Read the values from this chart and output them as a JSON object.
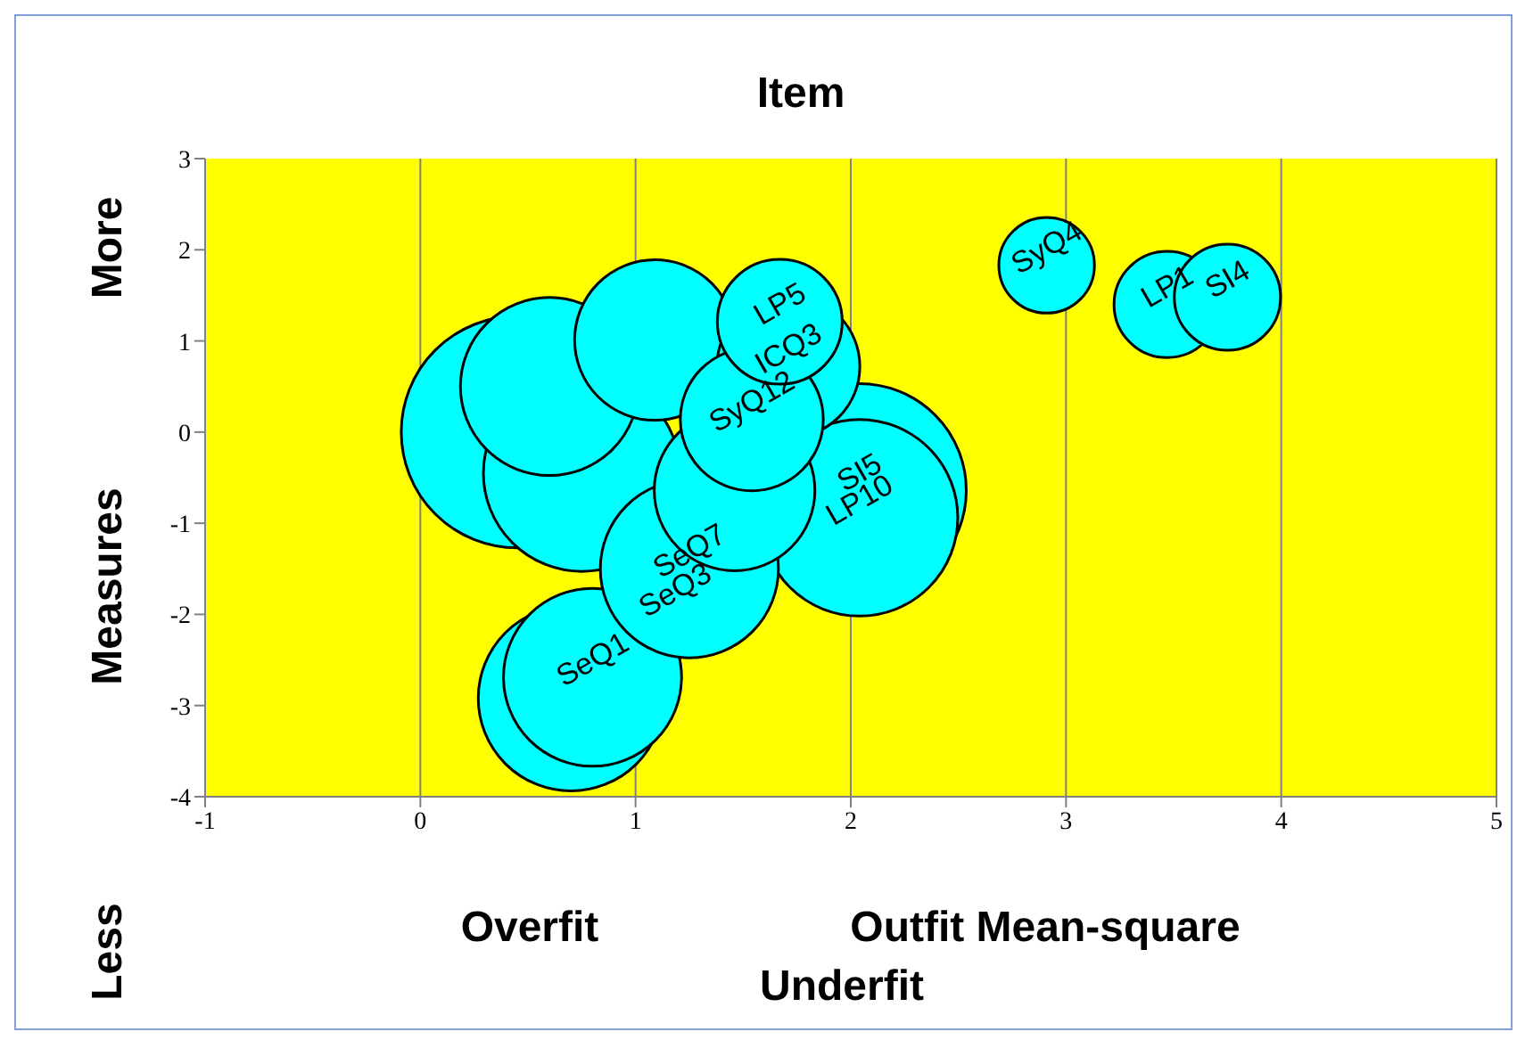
{
  "chart_data": {
    "type": "bubble",
    "title": "Item",
    "xlabel": "Outfit Mean-square",
    "ylabel": "Measures",
    "xlim": [
      -1,
      5
    ],
    "xticks": [
      -1,
      0,
      1,
      2,
      3,
      4,
      5
    ],
    "ylim": [
      -4,
      3
    ],
    "yticks": [
      -4,
      -3,
      -2,
      -1,
      0,
      1,
      2,
      3
    ],
    "grid": "x",
    "series": [
      {
        "color": "#00ffff",
        "x": [
          0.45,
          2.04,
          0.75,
          2.04,
          0.7,
          0.8,
          0.6,
          1.25,
          1.09,
          1.46,
          1.71,
          1.54,
          1.67,
          3.47,
          3.75,
          2.91
        ],
        "values": [
          0.0,
          -0.64,
          -0.45,
          -0.94,
          -2.92,
          -2.69,
          0.5,
          -1.5,
          1.01,
          -0.64,
          0.72,
          0.14,
          1.21,
          1.4,
          1.48,
          1.83
        ],
        "sizes": [
          1,
          0.85,
          0.72,
          0.72,
          0.64,
          0.59,
          0.59,
          0.59,
          0.48,
          0.48,
          0.38,
          0.38,
          0.29,
          0.21,
          0.21,
          0.17
        ]
      }
    ],
    "annotations": [
      {
        "text": "SyQ4",
        "x": 2.91,
        "y": 1.83
      },
      {
        "text": "LP1",
        "x": 3.47,
        "y": 1.4
      },
      {
        "text": "SI4",
        "x": 3.75,
        "y": 1.48
      },
      {
        "text": "LP5",
        "x": 1.67,
        "y": 1.21
      },
      {
        "text": "ICQ3",
        "x": 1.71,
        "y": 0.72
      },
      {
        "text": "SyQ12",
        "x": 1.54,
        "y": 0.14
      },
      {
        "text": "SI5",
        "x": 2.04,
        "y": -0.64
      },
      {
        "text": "LP10",
        "x": 2.04,
        "y": -0.94
      },
      {
        "text": "SeQ7",
        "x": 1.25,
        "y": -1.5
      },
      {
        "text": "SeQ3",
        "x": 1.25,
        "y": -1.5
      },
      {
        "text": "SeQ1",
        "x": 0.8,
        "y": -2.69
      },
      "More",
      "Less",
      "Overfit",
      "Underfit"
    ]
  }
}
